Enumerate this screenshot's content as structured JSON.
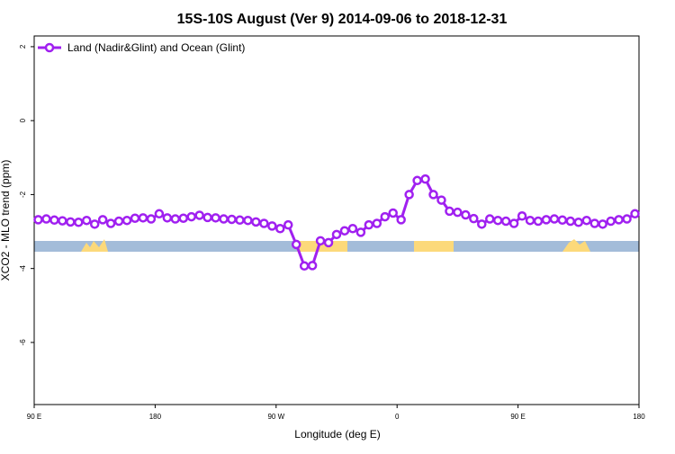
{
  "chart_data": {
    "type": "line",
    "title": "15S-10S August (Ver 9)   2014-09-06 to 2018-12-31",
    "x_label": "Longitude (deg E)",
    "y_label": "XCO2 - MLO trend (ppm)",
    "x": [
      93,
      99,
      105,
      111,
      117,
      123,
      129,
      135,
      141,
      147,
      153,
      159,
      165,
      171,
      177,
      183,
      189,
      195,
      201,
      207,
      213,
      219,
      225,
      231,
      237,
      243,
      249,
      255,
      261,
      267,
      273,
      279,
      285,
      291,
      297,
      303,
      309,
      315,
      321,
      327,
      333,
      339,
      345,
      351,
      357,
      363,
      369,
      375,
      381,
      387,
      393,
      399,
      405,
      411,
      417,
      423,
      429,
      435,
      441,
      447,
      453,
      459,
      465,
      471,
      477,
      483,
      489,
      495,
      501,
      507,
      513,
      519,
      525,
      531,
      537
    ],
    "series": [
      {
        "name": "Land (Nadir&Glint) and Ocean (Glint)",
        "color": "#a020f0",
        "values": [
          -2.68,
          -2.66,
          -2.69,
          -2.71,
          -2.74,
          -2.75,
          -2.7,
          -2.8,
          -2.68,
          -2.78,
          -2.72,
          -2.7,
          -2.64,
          -2.63,
          -2.66,
          -2.52,
          -2.63,
          -2.66,
          -2.64,
          -2.6,
          -2.56,
          -2.62,
          -2.63,
          -2.66,
          -2.67,
          -2.69,
          -2.7,
          -2.74,
          -2.78,
          -2.85,
          -2.92,
          -2.82,
          -3.35,
          -3.93,
          -3.92,
          -3.25,
          -3.3,
          -3.08,
          -2.98,
          -2.92,
          -3.02,
          -2.82,
          -2.78,
          -2.6,
          -2.5,
          -2.68,
          -2.0,
          -1.62,
          -1.58,
          -2.0,
          -2.15,
          -2.45,
          -2.48,
          -2.55,
          -2.65,
          -2.8,
          -2.66,
          -2.7,
          -2.72,
          -2.78,
          -2.58,
          -2.7,
          -2.72,
          -2.68,
          -2.66,
          -2.69,
          -2.72,
          -2.75,
          -2.7,
          -2.78,
          -2.8,
          -2.72,
          -2.68,
          -2.66,
          -2.52
        ]
      }
    ],
    "xlim": [
      90,
      540
    ],
    "xticks": [
      {
        "value": 90,
        "label": "90 E"
      },
      180,
      {
        "value": 270,
        "label": "90 W"
      },
      {
        "value": 360,
        "label": "0"
      },
      {
        "value": 450,
        "label": "90 E"
      },
      {
        "value": 540,
        "label": "180"
      }
    ],
    "ylim": [
      -7.68,
      2.29
    ],
    "yticks": [
      2,
      0,
      -2,
      -4,
      -6
    ],
    "legend": "top-left"
  }
}
